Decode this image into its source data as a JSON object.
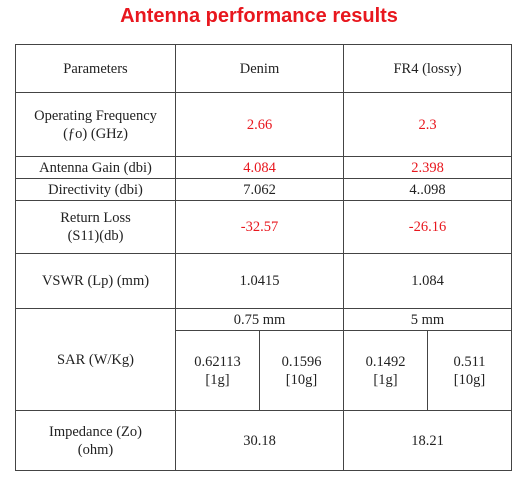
{
  "title": "Antenna performance results",
  "colors": {
    "title": "#e8171e",
    "highlight": "#e8171e",
    "border": "#444444"
  },
  "table": {
    "headers": [
      "Parameters",
      "Denim",
      "FR4 (lossy)"
    ],
    "rows": {
      "frequency": {
        "param_line1": "Operating Frequency",
        "param_line2": "(ƒo) (GHz)",
        "denim": "2.66",
        "fr4": "2.3"
      },
      "gain": {
        "param": "Antenna Gain (dbi)",
        "denim": "4.084",
        "fr4": "2.398"
      },
      "directivity": {
        "param": "Directivity (dbi)",
        "denim": "7.062",
        "fr4": "4..098"
      },
      "return_loss": {
        "param_line1": "Return Loss",
        "param_line2": "(S11)(db)",
        "denim": "-32.57",
        "fr4": "-26.16"
      },
      "vswr": {
        "param": "VSWR (Lp) (mm)",
        "denim": "1.0415",
        "fr4": "1.084"
      },
      "sar": {
        "param": "SAR (W/Kg)",
        "denim_thickness": "0.75 mm",
        "fr4_thickness": "5 mm",
        "denim_1g_value": "0.62113",
        "denim_1g_unit": "[1g]",
        "denim_10g_value": "0.1596",
        "denim_10g_unit": "[10g]",
        "fr4_1g_value": "0.1492",
        "fr4_1g_unit": "[1g]",
        "fr4_10g_value": "0.511",
        "fr4_10g_unit": "[10g]"
      },
      "impedance": {
        "param_line1": "Impedance (Zo)",
        "param_line2": "(ohm)",
        "denim": "30.18",
        "fr4": "18.21"
      }
    }
  }
}
